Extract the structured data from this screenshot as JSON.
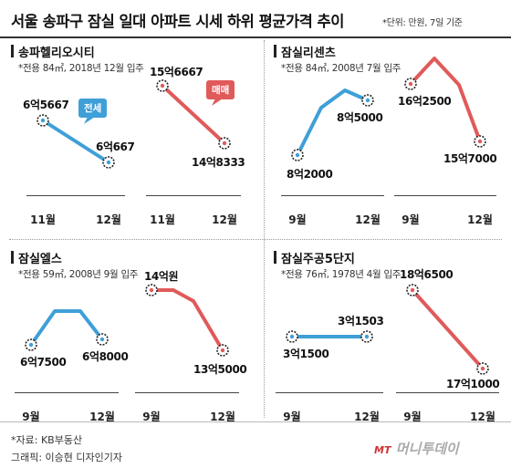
{
  "title": "서울 송파구 잠실 일대 아파트 시세 하위 평균가격 추이",
  "unit_note": "*단위: 만원, 7일 기준",
  "panels": [
    {
      "name": "송파헬리오시티",
      "sub": "*전용 84㎡, 2018년 12월 입주",
      "categories": [
        "11월",
        "12월"
      ],
      "jeonse": [
        {
          "x": "11월",
          "y": 65667,
          "label": "6억5667"
        },
        {
          "x": "12월",
          "y": 60667,
          "label": "6억667"
        }
      ],
      "maemae": [
        {
          "x": "11월",
          "y": 156667,
          "label": "15억6667"
        },
        {
          "x": "12월",
          "y": 148333,
          "label": "14억8333"
        }
      ],
      "callout_jeonse": "전세",
      "callout_maemae": "매매"
    },
    {
      "name": "잠실리센츠",
      "sub": "*전용 84㎡, 2008년 7월 입주",
      "categories": [
        "9월",
        "12월"
      ],
      "jeonse": [
        {
          "x": "9월",
          "y": 82000,
          "label": "8억2000"
        },
        {
          "x": "12월",
          "y": 85000,
          "label": "8억5000"
        }
      ],
      "maemae": [
        {
          "x": "9월",
          "y": 162500,
          "label": "16억2500"
        },
        {
          "x": "12월",
          "y": 157000,
          "label": "15억7000"
        }
      ]
    },
    {
      "name": "잠실엘스",
      "sub": "*전용 59㎡, 2008년 9월 입주",
      "categories": [
        "9월",
        "12월"
      ],
      "jeonse": [
        {
          "x": "9월",
          "y": 67500,
          "label": "6억7500"
        },
        {
          "x": "12월",
          "y": 68000,
          "label": "6억8000"
        }
      ],
      "maemae": [
        {
          "x": "9월",
          "y": 140000,
          "label": "14억원"
        },
        {
          "x": "12월",
          "y": 135000,
          "label": "13억5000"
        }
      ]
    },
    {
      "name": "잠실주공5단지",
      "sub": "*전용 76㎡, 1978년 4월 입주",
      "categories": [
        "9월",
        "12월"
      ],
      "jeonse": [
        {
          "x": "9월",
          "y": 31500,
          "label": "3억1500"
        },
        {
          "x": "12월",
          "y": 31503,
          "label": "3억1503"
        }
      ],
      "maemae": [
        {
          "x": "9월",
          "y": 186500,
          "label": "18억6500"
        },
        {
          "x": "12월",
          "y": 171000,
          "label": "17억1000"
        }
      ]
    }
  ],
  "source": "*자료: KB부동산",
  "credit": "그래픽: 이승현 디자인기자",
  "logo": "MT 머니투데이",
  "logo_mark": "MT",
  "logo_text": "머니투데이",
  "colors": {
    "jeonse": "#3f9fd8",
    "maemae": "#e05a5a"
  },
  "chart_data": [
    {
      "type": "line",
      "title": "송파헬리오시티",
      "categories": [
        "11월",
        "12월"
      ],
      "series": [
        {
          "name": "전세",
          "values": [
            65667,
            60667
          ]
        },
        {
          "name": "매매",
          "values": [
            156667,
            148333
          ]
        }
      ]
    },
    {
      "type": "line",
      "title": "잠실리센츠",
      "categories": [
        "9월",
        "12월"
      ],
      "series": [
        {
          "values": [
            82000,
            85000
          ]
        },
        {
          "values": [
            162500,
            157000
          ]
        }
      ]
    },
    {
      "type": "line",
      "title": "잠실엘스",
      "categories": [
        "9월",
        "12월"
      ],
      "series": [
        {
          "values": [
            67500,
            68000
          ]
        },
        {
          "values": [
            140000,
            135000
          ]
        }
      ]
    },
    {
      "type": "line",
      "title": "잠실주공5단지",
      "categories": [
        "9월",
        "12월"
      ],
      "series": [
        {
          "values": [
            31500,
            31503
          ]
        },
        {
          "values": [
            186500,
            171000
          ]
        }
      ]
    }
  ]
}
